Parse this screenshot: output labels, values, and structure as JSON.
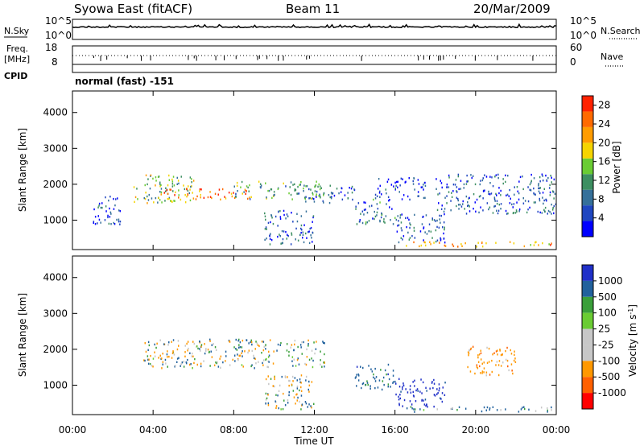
{
  "header": {
    "title": "Syowa East (fitACF)",
    "beam": "Beam 11",
    "date": "20/Mar/2009"
  },
  "top_panels": {
    "nsky_label": "N.Sky",
    "nsearch_label": "N.Search",
    "freq_label_line1": "Freq.",
    "freq_label_line2": "[MHz]",
    "nave_label": "Nave",
    "cpid_label": "CPID",
    "cpid_value": "normal (fast) -151",
    "noise_ticks": [
      "10^5",
      "10^0"
    ],
    "freq_ticks": [
      "18",
      "8"
    ],
    "nave_ticks": [
      "60",
      "0"
    ]
  },
  "axes": {
    "xlabel": "Time UT",
    "ylabel": "Slant Range [km]",
    "power_label": "Power [dB]",
    "velocity_label": "Velocity [m s",
    "velocity_label_sup": "-1",
    "velocity_label_end": "]"
  },
  "colors": {
    "power": [
      "#0000ff",
      "#1f46c0",
      "#35709a",
      "#3d8f61",
      "#6acc33",
      "#f5d400",
      "#ff9c00",
      "#ff6a00",
      "#ff2200"
    ],
    "velocity": [
      "#ff0000",
      "#ff6000",
      "#ff9800",
      "#c7c7c7",
      "#c7c7c7",
      "#6acc33",
      "#3a9f3a",
      "#21619d",
      "#2030c8"
    ]
  },
  "chart_data": [
    {
      "type": "heatmap",
      "panel": "power",
      "x_unit": "hours UT",
      "xlim": [
        0,
        24
      ],
      "ylim": [
        180,
        4600
      ],
      "x_ticks": [
        "00:00",
        "04:00",
        "08:00",
        "12:00",
        "16:00",
        "20:00",
        "00:00"
      ],
      "y_ticks": [
        "1000",
        "2000",
        "3000",
        "4000"
      ],
      "colorbar_label": "Power [dB]",
      "colorbar_ticks": [
        "28",
        "24",
        "20",
        "16",
        "12",
        "8",
        "4"
      ],
      "colorbar_range": [
        0,
        30
      ],
      "echo_regions": [
        {
          "x": [
            1.0,
            2.5
          ],
          "y": [
            900,
            1700
          ],
          "value": 6
        },
        {
          "x": [
            3.0,
            6.0
          ],
          "y": [
            1500,
            2300
          ],
          "value": 14
        },
        {
          "x": [
            4.5,
            9.0
          ],
          "y": [
            1600,
            1900
          ],
          "value": 24
        },
        {
          "x": [
            8.0,
            12.5
          ],
          "y": [
            1600,
            2100
          ],
          "value": 12
        },
        {
          "x": [
            9.5,
            12.0
          ],
          "y": [
            350,
            1300
          ],
          "value": 6
        },
        {
          "x": [
            11.5,
            14.0
          ],
          "y": [
            1500,
            2000
          ],
          "value": 8
        },
        {
          "x": [
            14.0,
            16.0
          ],
          "y": [
            900,
            1600
          ],
          "value": 8
        },
        {
          "x": [
            15.0,
            17.5
          ],
          "y": [
            1600,
            2200
          ],
          "value": 4
        },
        {
          "x": [
            16.0,
            18.5
          ],
          "y": [
            400,
            1200
          ],
          "value": 6
        },
        {
          "x": [
            18.0,
            24.0
          ],
          "y": [
            1200,
            2300
          ],
          "value": 6
        },
        {
          "x": [
            16.5,
            24.0
          ],
          "y": [
            280,
            420
          ],
          "value": 22
        }
      ]
    },
    {
      "type": "heatmap",
      "panel": "velocity",
      "x_unit": "hours UT",
      "xlim": [
        0,
        24
      ],
      "ylim": [
        180,
        4600
      ],
      "x_ticks": [
        "00:00",
        "04:00",
        "08:00",
        "12:00",
        "16:00",
        "20:00",
        "00:00"
      ],
      "y_ticks": [
        "1000",
        "2000",
        "3000",
        "4000"
      ],
      "colorbar_label": "Velocity [m s-1]",
      "colorbar_ticks": [
        "1000",
        "500",
        "100",
        "25",
        "-25",
        "-100",
        "-500",
        "-1000"
      ],
      "echo_regions": [
        {
          "x": [
            3.5,
            12.5
          ],
          "y": [
            1500,
            2300
          ],
          "value": 0
        },
        {
          "x": [
            9.5,
            12.0
          ],
          "y": [
            350,
            1300
          ],
          "value": 0
        },
        {
          "x": [
            14.0,
            16.0
          ],
          "y": [
            900,
            1600
          ],
          "value": 300
        },
        {
          "x": [
            16.0,
            18.5
          ],
          "y": [
            400,
            1200
          ],
          "value": 700
        },
        {
          "x": [
            19.5,
            22.0
          ],
          "y": [
            1300,
            2100
          ],
          "value": -300
        },
        {
          "x": [
            16.5,
            24.0
          ],
          "y": [
            280,
            420
          ],
          "value": 150
        }
      ]
    }
  ]
}
